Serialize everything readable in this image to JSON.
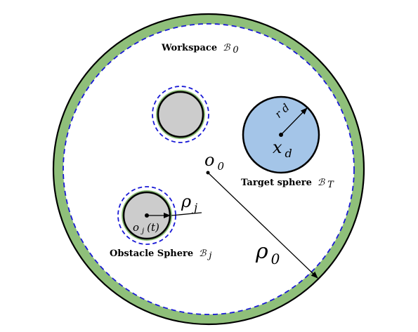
{
  "colors": {
    "boundary_green": "#8fbf7a",
    "dash_blue": "#1a1ad6",
    "target_fill": "#a4c5e8",
    "obstacle_fill": "#cccccc",
    "outline": "#000000"
  },
  "workspace": {
    "label": "Workspace",
    "symbol": "ℬ",
    "subscript": "0"
  },
  "center_label": {
    "base": "o",
    "sub": "0"
  },
  "radius_label": {
    "base": "ρ",
    "sub": "0"
  },
  "target": {
    "label": "Target sphere",
    "symbol": "ℬ",
    "subscript": "T",
    "radius_text": "r d",
    "center_base": "x",
    "center_sub": "d"
  },
  "obstacle": {
    "label": "Obstacle Sphere",
    "symbol": "ℬ",
    "subscript": "j",
    "radius_base": "ρ",
    "radius_sub": "j",
    "center_text": "o",
    "center_sub": "j",
    "center_arg": "(t)"
  }
}
